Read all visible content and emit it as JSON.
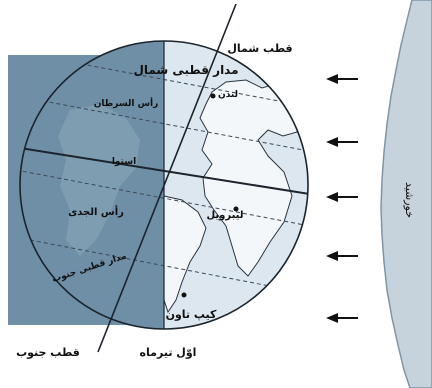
{
  "labels": {
    "north_pole": "قطب شمال",
    "south_pole": "قطب جنوب",
    "arctic_circle": "مدار قطبی شمال",
    "tropic_cancer": "رأس السرطان",
    "equator": "استوا",
    "tropic_capricorn": "رأس الجدی",
    "antarctic_circle": "مدار قطبی جنوب",
    "london": "لندن",
    "libreville": "لیبرویل",
    "cape_town": "کیپ تاون",
    "date": "اوّل تیرماه",
    "sun": "خورشید"
  },
  "colors": {
    "night_side": "#6f8fa6",
    "day_side": "#dce7ef",
    "night_land": "#86a3b6",
    "sun": "#c6d3dd",
    "ink": "#111111"
  },
  "icons": [
    "sun-ray-arrow-icon"
  ],
  "sun_ray_count": 5
}
